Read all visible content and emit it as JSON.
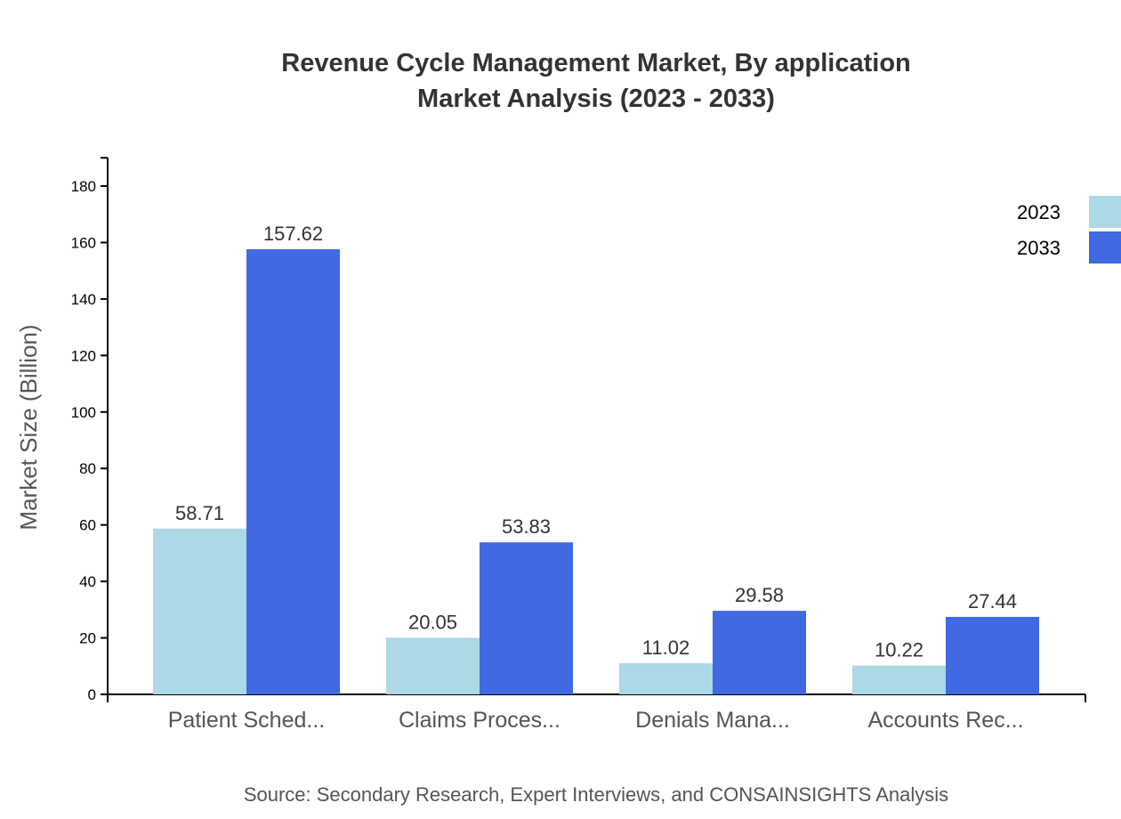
{
  "chart_data": {
    "type": "bar",
    "title": [
      "Revenue Cycle Management Market, By application",
      "Market Analysis (2023 - 2033)"
    ],
    "xlabel": "",
    "ylabel": "Market Size (Billion)",
    "ylim": [
      0,
      190
    ],
    "yticks": [
      0,
      20,
      40,
      60,
      80,
      100,
      120,
      140,
      160,
      180
    ],
    "categories": [
      "Patient Sched...",
      "Claims Proces...",
      "Denials Mana...",
      "Accounts Rec..."
    ],
    "series": [
      {
        "name": "2023",
        "color": "#ADD8E6",
        "values": [
          58.71,
          20.05,
          11.02,
          10.22
        ]
      },
      {
        "name": "2033",
        "color": "#4169E1",
        "values": [
          157.62,
          53.83,
          29.58,
          27.44
        ]
      }
    ],
    "legend_position": "top-right",
    "grid": false,
    "source": "Source: Secondary Research, Expert Interviews, and CONSAINSIGHTS Analysis"
  }
}
